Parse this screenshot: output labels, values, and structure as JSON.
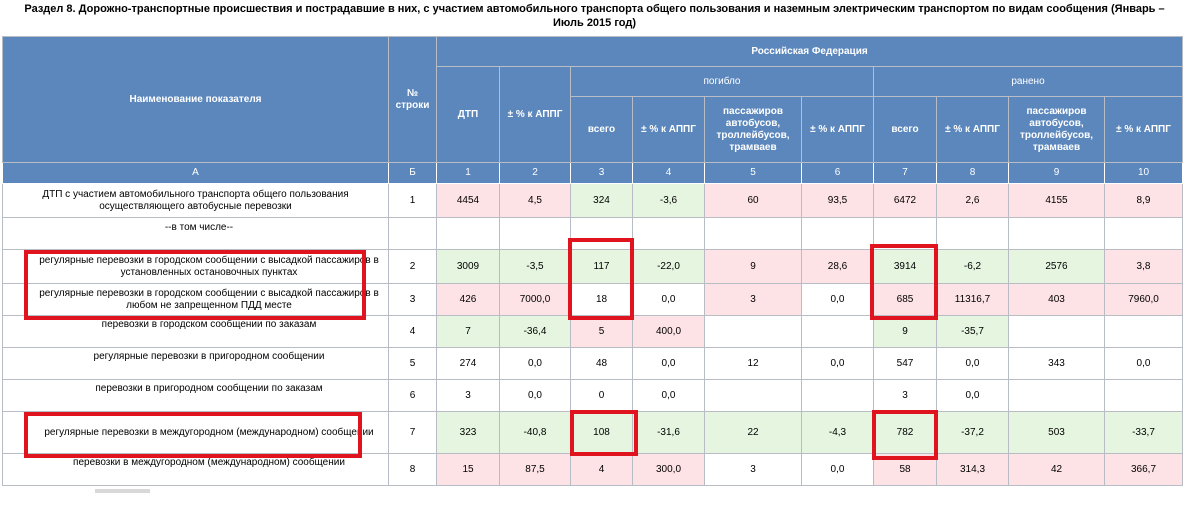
{
  "title_line1": "Раздел 8. Дорожно-транспортные происшествия и пострадавшие в них, с участием автомобильного транспорта общего пользования и наземным электрическим транспортом по видам сообщения (Январь –",
  "title_line2": "Июль 2015 год)",
  "header": {
    "name_col": "Наименование показателя",
    "row_no_col": "№ строки",
    "region": "Российская Федерация",
    "dtp": "ДТП",
    "pct_appg": "± % к АППГ",
    "killed_group": "погибло",
    "injured_group": "ранено",
    "total": "всего",
    "passengers": "пассажиров автобусов, троллейбусов, трамваев"
  },
  "letters": [
    "А",
    "Б",
    "1",
    "2",
    "3",
    "4",
    "5",
    "6",
    "7",
    "8",
    "9",
    "10"
  ],
  "rows": [
    {
      "name": "ДТП с участием автомобильного транспорта общего пользования осуществляющего автобусные перевозки",
      "no": "1",
      "v": [
        "4454",
        "4,5",
        "324",
        "-3,6",
        "60",
        "93,5",
        "6472",
        "2,6",
        "4155",
        "8,9"
      ]
    },
    {
      "name": "--в том числе--",
      "no": "",
      "v": [
        "",
        "",
        "",
        "",
        "",
        "",
        "",
        "",
        "",
        ""
      ]
    },
    {
      "name": "регулярные перевозки в городском сообщении с высадкой пассажиров в установленных остановочных пунктах",
      "no": "2",
      "v": [
        "3009",
        "-3,5",
        "117",
        "-22,0",
        "9",
        "28,6",
        "3914",
        "-6,2",
        "2576",
        "3,8"
      ]
    },
    {
      "name": "регулярные перевозки в городском сообщении с высадкой пассажиров в любом не запрещенном ПДД месте",
      "no": "3",
      "v": [
        "426",
        "7000,0",
        "18",
        "0,0",
        "3",
        "0,0",
        "685",
        "11316,7",
        "403",
        "7960,0"
      ]
    },
    {
      "name": "перевозки в городском сообщении по заказам",
      "no": "4",
      "v": [
        "7",
        "-36,4",
        "5",
        "400,0",
        "",
        "",
        "9",
        "-35,7",
        "",
        ""
      ]
    },
    {
      "name": "регулярные перевозки в пригородном сообщении",
      "no": "5",
      "v": [
        "274",
        "0,0",
        "48",
        "0,0",
        "12",
        "0,0",
        "547",
        "0,0",
        "343",
        "0,0"
      ]
    },
    {
      "name": "перевозки в пригородном сообщении по заказам",
      "no": "6",
      "v": [
        "3",
        "0,0",
        "0",
        "0,0",
        "",
        "",
        "3",
        "0,0",
        "",
        ""
      ]
    },
    {
      "name": "регулярные перевозки в междугородном (международном) сообщении",
      "no": "7",
      "v": [
        "323",
        "-40,8",
        "108",
        "-31,6",
        "22",
        "-4,3",
        "782",
        "-37,2",
        "503",
        "-33,7"
      ]
    },
    {
      "name": "перевозки в междугородном (международном) сообщении",
      "no": "8",
      "v": [
        "15",
        "87,5",
        "4",
        "300,0",
        "3",
        "0,0",
        "58",
        "314,3",
        "42",
        "366,7"
      ]
    }
  ],
  "colors": {
    "header_bg": "#5b87bd",
    "pink": "#fde3e5",
    "green": "#e5f5e0",
    "highlight_red": "#e0141e"
  }
}
